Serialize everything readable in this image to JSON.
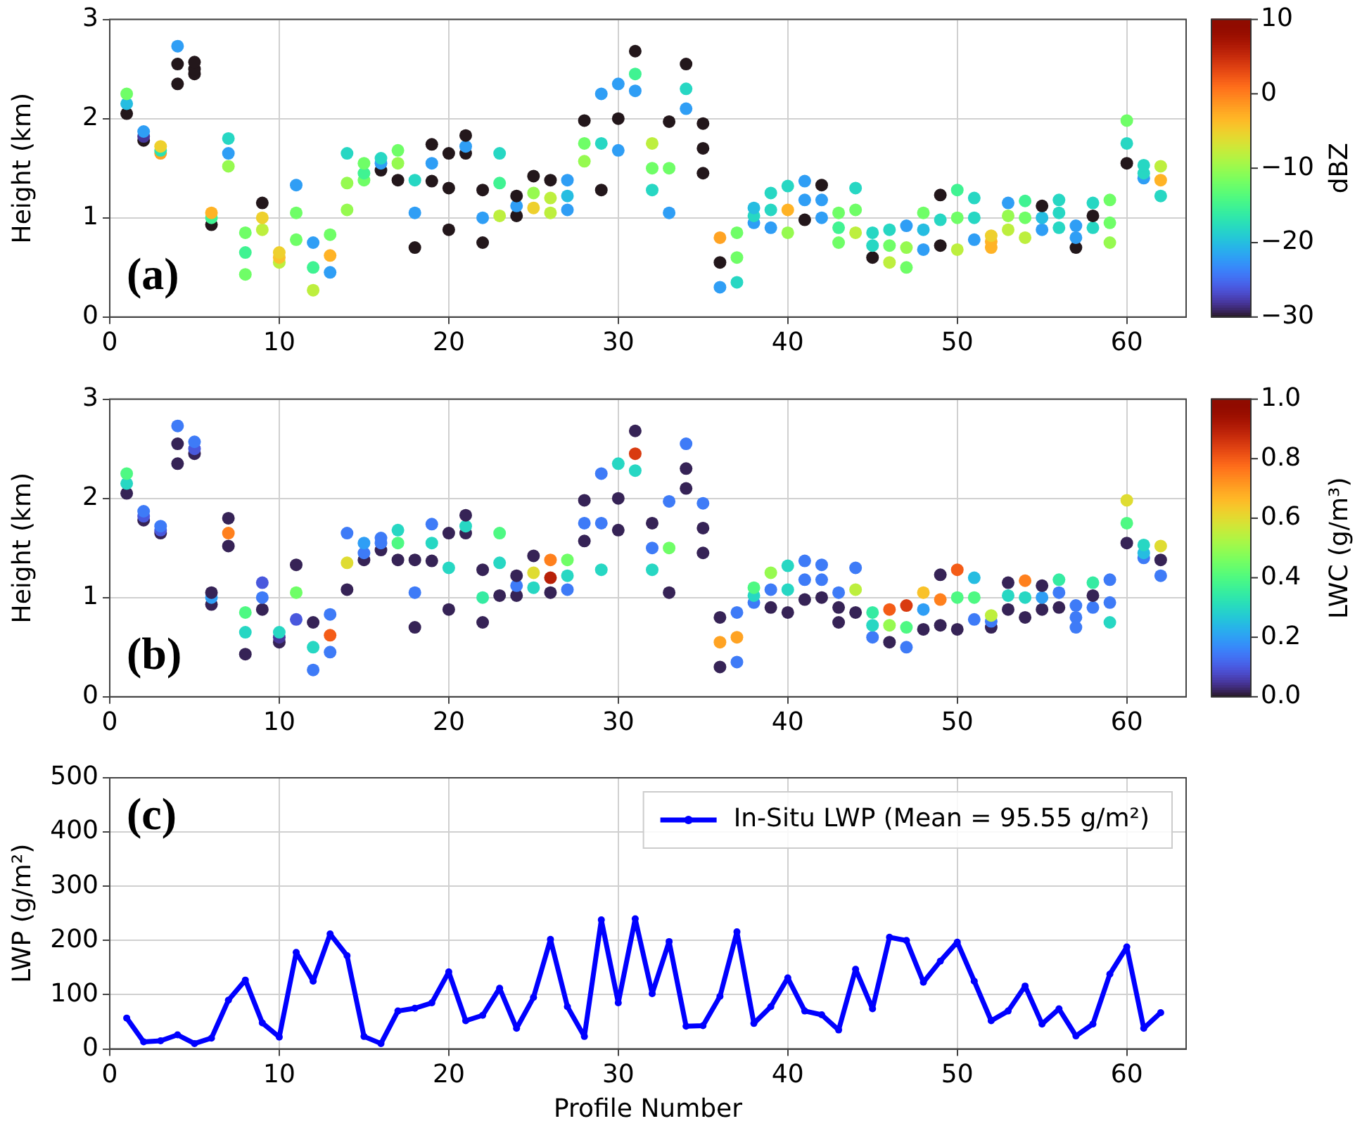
{
  "chart_data": [
    {
      "type": "scatter",
      "ylabel": "Height (km)",
      "clabel": "dBZ",
      "annotations": [
        "(a)"
      ],
      "xlim": [
        0,
        63.5
      ],
      "xticks": [
        0,
        10,
        20,
        30,
        40,
        50,
        60
      ],
      "ylim": [
        0,
        3
      ],
      "yticks": [
        0,
        1,
        2,
        3
      ],
      "clim": [
        -30,
        10
      ],
      "cticks": [
        -30,
        -20,
        -10,
        0,
        10
      ],
      "grid": true,
      "marker": "circle",
      "series": [
        {
          "x": [
            1,
            1,
            1,
            2,
            2,
            2,
            3,
            3,
            3,
            4,
            4,
            4,
            5,
            5,
            5,
            6,
            6,
            6,
            7,
            7,
            7,
            8,
            8,
            8,
            9,
            9,
            9,
            10,
            10,
            10,
            11,
            11,
            11,
            12,
            12,
            12,
            13,
            13,
            13,
            14,
            14,
            14,
            15,
            15,
            15,
            16,
            16,
            16,
            17,
            17,
            17,
            18,
            18,
            18,
            19,
            19,
            19,
            20,
            20,
            20,
            21,
            21,
            21,
            22,
            22,
            22,
            23,
            23,
            23,
            24,
            24,
            24,
            25,
            25,
            25,
            26,
            26,
            26,
            27,
            27,
            27,
            28,
            28,
            28,
            29,
            29,
            29,
            30,
            30,
            30,
            31,
            31,
            31,
            32,
            32,
            32,
            33,
            33,
            33,
            34,
            34,
            34,
            35,
            35,
            35,
            36,
            36,
            36,
            37,
            37,
            37,
            38,
            38,
            38,
            39,
            39,
            39,
            40,
            40,
            40,
            41,
            41,
            41,
            42,
            42,
            42,
            43,
            43,
            43,
            44,
            44,
            44,
            45,
            45,
            45,
            46,
            46,
            46,
            47,
            47,
            47,
            48,
            48,
            48,
            49,
            49,
            49,
            50,
            50,
            50,
            51,
            51,
            51,
            52,
            52,
            52,
            53,
            53,
            53,
            54,
            54,
            54,
            55,
            55,
            55,
            56,
            56,
            56,
            57,
            57,
            57,
            58,
            58,
            58,
            59,
            59,
            59,
            60,
            60,
            60,
            61,
            61,
            61,
            62,
            62,
            62
          ],
          "values": [
            2.05,
            2.15,
            2.25,
            1.78,
            1.82,
            1.87,
            1.65,
            1.68,
            1.72,
            2.35,
            2.55,
            2.73,
            2.45,
            2.5,
            2.57,
            0.93,
            1.0,
            1.05,
            1.52,
            1.65,
            1.8,
            0.43,
            0.65,
            0.85,
            0.88,
            1.0,
            1.15,
            0.55,
            0.6,
            0.65,
            0.78,
            1.05,
            1.33,
            0.27,
            0.5,
            0.75,
            0.45,
            0.62,
            0.83,
            1.08,
            1.35,
            1.65,
            1.38,
            1.45,
            1.55,
            1.48,
            1.55,
            1.6,
            1.38,
            1.55,
            1.68,
            0.7,
            1.05,
            1.38,
            1.37,
            1.55,
            1.74,
            0.88,
            1.3,
            1.65,
            1.65,
            1.72,
            1.83,
            0.75,
            1.0,
            1.28,
            1.02,
            1.35,
            1.65,
            1.02,
            1.12,
            1.22,
            1.1,
            1.25,
            1.42,
            1.05,
            1.2,
            1.38,
            1.08,
            1.22,
            1.38,
            1.57,
            1.75,
            1.98,
            1.28,
            1.75,
            2.25,
            1.68,
            2.0,
            2.35,
            2.28,
            2.45,
            2.68,
            1.28,
            1.5,
            1.75,
            1.05,
            1.5,
            1.97,
            2.1,
            2.3,
            2.55,
            1.45,
            1.7,
            1.95,
            0.3,
            0.55,
            0.8,
            0.35,
            0.6,
            0.85,
            0.95,
            1.02,
            1.1,
            0.9,
            1.08,
            1.25,
            0.85,
            1.08,
            1.32,
            0.98,
            1.18,
            1.37,
            1.0,
            1.18,
            1.33,
            0.75,
            0.9,
            1.05,
            0.85,
            1.08,
            1.3,
            0.6,
            0.72,
            0.85,
            0.55,
            0.72,
            0.88,
            0.5,
            0.7,
            0.92,
            0.68,
            0.88,
            1.05,
            0.72,
            0.98,
            1.23,
            0.68,
            1.0,
            1.28,
            0.78,
            1.0,
            1.2,
            0.7,
            0.76,
            0.82,
            0.88,
            1.02,
            1.15,
            0.8,
            1.0,
            1.17,
            0.88,
            1.0,
            1.12,
            0.9,
            1.05,
            1.18,
            0.7,
            0.8,
            0.92,
            0.9,
            1.02,
            1.15,
            0.75,
            0.95,
            1.18,
            1.55,
            1.75,
            1.98,
            1.4,
            1.45,
            1.53,
            1.22,
            1.38,
            1.52
          ],
          "cvalues": [
            -30,
            -20,
            -12,
            -30,
            -28,
            -22,
            -2,
            -17,
            -5,
            -30,
            -30,
            -22,
            -30,
            -30,
            -30,
            -30,
            -15,
            -3,
            -10,
            -22,
            -18,
            -12,
            -15,
            -12,
            -8,
            -5,
            -30,
            -8,
            -4,
            -5,
            -12,
            -12,
            -22,
            -8,
            -15,
            -22,
            -22,
            -3,
            -12,
            -10,
            -10,
            -18,
            -12,
            -15,
            -12,
            -30,
            -22,
            -18,
            -30,
            -10,
            -12,
            -30,
            -22,
            -18,
            -30,
            -22,
            -30,
            -30,
            -30,
            -30,
            -30,
            -22,
            -30,
            -30,
            -22,
            -30,
            -8,
            -15,
            -18,
            -30,
            -22,
            -30,
            -5,
            -10,
            -30,
            -8,
            -8,
            -30,
            -22,
            -20,
            -22,
            -10,
            -12,
            -30,
            -30,
            -18,
            -22,
            -22,
            -30,
            -22,
            -22,
            -15,
            -30,
            -18,
            -12,
            -8,
            -22,
            -12,
            -30,
            -22,
            -18,
            -30,
            -30,
            -30,
            -30,
            -22,
            -30,
            -2,
            -18,
            -12,
            -12,
            -22,
            -18,
            -20,
            -22,
            -18,
            -18,
            -10,
            -3,
            -18,
            -30,
            -22,
            -22,
            -22,
            -22,
            -30,
            -12,
            -15,
            -12,
            -8,
            -12,
            -18,
            -30,
            -18,
            -18,
            -8,
            -12,
            -18,
            -12,
            -10,
            -22,
            -22,
            -20,
            -12,
            -30,
            -18,
            -30,
            -8,
            -12,
            -15,
            -22,
            -18,
            -18,
            -3,
            -3,
            -5,
            -8,
            -10,
            -22,
            -8,
            -12,
            -15,
            -22,
            -20,
            -30,
            -18,
            -18,
            -18,
            -30,
            -22,
            -22,
            -18,
            -30,
            -18,
            -10,
            -12,
            -12,
            -30,
            -18,
            -12,
            -22,
            -18,
            -18,
            -18,
            -3,
            -8
          ]
        }
      ]
    },
    {
      "type": "scatter",
      "ylabel": "Height (km)",
      "clabel": "LWC (g/m³)",
      "annotations": [
        "(b)"
      ],
      "xlim": [
        0,
        63.5
      ],
      "xticks": [
        0,
        10,
        20,
        30,
        40,
        50,
        60
      ],
      "ylim": [
        0,
        3
      ],
      "yticks": [
        0,
        1,
        2,
        3
      ],
      "clim": [
        0,
        1
      ],
      "cticks": [
        {
          "value": 0,
          "label": "0.0"
        },
        0.2,
        0.4,
        0.6,
        0.8,
        {
          "value": 1,
          "label": "1.0"
        }
      ],
      "grid": true,
      "marker": "circle",
      "series": [
        {
          "x": [
            1,
            1,
            1,
            2,
            2,
            2,
            3,
            3,
            3,
            4,
            4,
            4,
            5,
            5,
            5,
            6,
            6,
            6,
            7,
            7,
            7,
            8,
            8,
            8,
            9,
            9,
            9,
            10,
            10,
            10,
            11,
            11,
            11,
            12,
            12,
            12,
            13,
            13,
            13,
            14,
            14,
            14,
            15,
            15,
            15,
            16,
            16,
            16,
            17,
            17,
            17,
            18,
            18,
            18,
            19,
            19,
            19,
            20,
            20,
            20,
            21,
            21,
            21,
            22,
            22,
            22,
            23,
            23,
            23,
            24,
            24,
            24,
            25,
            25,
            25,
            26,
            26,
            26,
            27,
            27,
            27,
            28,
            28,
            28,
            29,
            29,
            29,
            30,
            30,
            30,
            31,
            31,
            31,
            32,
            32,
            32,
            33,
            33,
            33,
            34,
            34,
            34,
            35,
            35,
            35,
            36,
            36,
            36,
            37,
            37,
            37,
            38,
            38,
            38,
            39,
            39,
            39,
            40,
            40,
            40,
            41,
            41,
            41,
            42,
            42,
            42,
            43,
            43,
            43,
            44,
            44,
            44,
            45,
            45,
            45,
            46,
            46,
            46,
            47,
            47,
            47,
            48,
            48,
            48,
            49,
            49,
            49,
            50,
            50,
            50,
            51,
            51,
            51,
            52,
            52,
            52,
            53,
            53,
            53,
            54,
            54,
            54,
            55,
            55,
            55,
            56,
            56,
            56,
            57,
            57,
            57,
            58,
            58,
            58,
            59,
            59,
            59,
            60,
            60,
            60,
            61,
            61,
            61,
            62,
            62,
            62
          ],
          "values": [
            2.05,
            2.15,
            2.25,
            1.78,
            1.82,
            1.87,
            1.65,
            1.68,
            1.72,
            2.35,
            2.55,
            2.73,
            2.45,
            2.5,
            2.57,
            0.93,
            1.0,
            1.05,
            1.52,
            1.65,
            1.8,
            0.43,
            0.65,
            0.85,
            0.88,
            1.0,
            1.15,
            0.55,
            0.6,
            0.65,
            0.78,
            1.05,
            1.33,
            0.27,
            0.5,
            0.75,
            0.45,
            0.62,
            0.83,
            1.08,
            1.35,
            1.65,
            1.38,
            1.45,
            1.55,
            1.48,
            1.55,
            1.6,
            1.38,
            1.55,
            1.68,
            0.7,
            1.05,
            1.38,
            1.37,
            1.55,
            1.74,
            0.88,
            1.3,
            1.65,
            1.65,
            1.72,
            1.83,
            0.75,
            1.0,
            1.28,
            1.02,
            1.35,
            1.65,
            1.02,
            1.12,
            1.22,
            1.1,
            1.25,
            1.42,
            1.05,
            1.2,
            1.38,
            1.08,
            1.22,
            1.38,
            1.57,
            1.75,
            1.98,
            1.28,
            1.75,
            2.25,
            1.68,
            2.0,
            2.35,
            2.28,
            2.45,
            2.68,
            1.28,
            1.5,
            1.75,
            1.05,
            1.5,
            1.97,
            2.1,
            2.3,
            2.55,
            1.45,
            1.7,
            1.95,
            0.3,
            0.55,
            0.8,
            0.35,
            0.6,
            0.85,
            0.95,
            1.02,
            1.1,
            0.9,
            1.08,
            1.25,
            0.85,
            1.08,
            1.32,
            0.98,
            1.18,
            1.37,
            1.0,
            1.18,
            1.33,
            0.75,
            0.9,
            1.05,
            0.85,
            1.08,
            1.3,
            0.6,
            0.72,
            0.85,
            0.55,
            0.72,
            0.88,
            0.5,
            0.7,
            0.92,
            0.68,
            0.88,
            1.05,
            0.72,
            0.98,
            1.23,
            0.68,
            1.0,
            1.28,
            0.78,
            1.0,
            1.2,
            0.7,
            0.76,
            0.82,
            0.88,
            1.02,
            1.15,
            0.8,
            1.0,
            1.17,
            0.88,
            1.0,
            1.12,
            0.9,
            1.05,
            1.18,
            0.7,
            0.8,
            0.92,
            0.9,
            1.02,
            1.15,
            0.75,
            0.95,
            1.18,
            1.55,
            1.75,
            1.98,
            1.4,
            1.45,
            1.53,
            1.22,
            1.38,
            1.52
          ],
          "cvalues": [
            0.02,
            0.3,
            0.4,
            0.02,
            0.1,
            0.15,
            0.02,
            0.1,
            0.15,
            0.02,
            0.02,
            0.15,
            0.02,
            0.1,
            0.15,
            0.02,
            0.2,
            0.02,
            0.02,
            0.75,
            0.02,
            0.02,
            0.3,
            0.4,
            0.02,
            0.15,
            0.1,
            0.02,
            0.05,
            0.3,
            0.1,
            0.45,
            0.02,
            0.15,
            0.3,
            0.02,
            0.15,
            0.8,
            0.15,
            0.02,
            0.6,
            0.15,
            0.02,
            0.15,
            0.2,
            0.02,
            0.15,
            0.15,
            0.02,
            0.4,
            0.3,
            0.02,
            0.15,
            0.02,
            0.02,
            0.3,
            0.15,
            0.02,
            0.3,
            0.02,
            0.02,
            0.3,
            0.02,
            0.02,
            0.35,
            0.02,
            0.02,
            0.3,
            0.4,
            0.02,
            0.15,
            0.02,
            0.3,
            0.6,
            0.02,
            0.02,
            0.9,
            0.75,
            0.15,
            0.3,
            0.45,
            0.02,
            0.15,
            0.02,
            0.3,
            0.15,
            0.15,
            0.02,
            0.02,
            0.3,
            0.3,
            0.85,
            0.02,
            0.3,
            0.15,
            0.02,
            0.02,
            0.45,
            0.15,
            0.02,
            0.02,
            0.15,
            0.02,
            0.02,
            0.15,
            0.02,
            0.7,
            0.02,
            0.15,
            0.7,
            0.15,
            0.15,
            0.3,
            0.4,
            0.02,
            0.15,
            0.5,
            0.02,
            0.3,
            0.3,
            0.02,
            0.15,
            0.15,
            0.02,
            0.15,
            0.15,
            0.02,
            0.02,
            0.15,
            0.02,
            0.55,
            0.15,
            0.15,
            0.3,
            0.35,
            0.02,
            0.5,
            0.8,
            0.15,
            0.4,
            0.85,
            0.02,
            0.2,
            0.65,
            0.02,
            0.75,
            0.02,
            0.02,
            0.4,
            0.8,
            0.15,
            0.4,
            0.25,
            0.02,
            0.15,
            0.55,
            0.02,
            0.3,
            0.02,
            0.02,
            0.3,
            0.75,
            0.02,
            0.2,
            0.02,
            0.02,
            0.15,
            0.35,
            0.15,
            0.15,
            0.15,
            0.15,
            0.02,
            0.35,
            0.3,
            0.15,
            0.15,
            0.02,
            0.4,
            0.6,
            0.15,
            0.25,
            0.3,
            0.15,
            0.02,
            0.6
          ]
        }
      ]
    },
    {
      "type": "line",
      "xlabel": "Profile Number",
      "ylabel": "LWP (g/m²)",
      "annotations": [
        "(c)"
      ],
      "xlim": [
        0,
        63.5
      ],
      "xticks": [
        0,
        10,
        20,
        30,
        40,
        50,
        60
      ],
      "ylim": [
        0,
        500
      ],
      "yticks": [
        0,
        100,
        200,
        300,
        400,
        500
      ],
      "grid": true,
      "legend": "top right",
      "marker": "circle",
      "line_style": "solid",
      "x": [
        1,
        2,
        3,
        4,
        5,
        6,
        7,
        8,
        9,
        10,
        11,
        12,
        13,
        14,
        15,
        16,
        17,
        18,
        19,
        20,
        21,
        22,
        23,
        24,
        25,
        26,
        27,
        28,
        29,
        30,
        31,
        32,
        33,
        34,
        35,
        36,
        37,
        38,
        39,
        40,
        41,
        42,
        43,
        44,
        45,
        46,
        47,
        48,
        49,
        50,
        51,
        52,
        53,
        54,
        55,
        56,
        57,
        58,
        59,
        60,
        61,
        62
      ],
      "series": [
        {
          "name": "In-Situ LWP (Mean = 95.55 g/m²)",
          "color": "#0000ff",
          "values": [
            57,
            13,
            15,
            26,
            10,
            20,
            90,
            127,
            48,
            22,
            178,
            125,
            212,
            172,
            23,
            10,
            70,
            75,
            85,
            142,
            52,
            62,
            112,
            38,
            95,
            202,
            78,
            23,
            238,
            85,
            240,
            102,
            198,
            42,
            43,
            97,
            216,
            47,
            78,
            131,
            70,
            63,
            35,
            147,
            74,
            206,
            200,
            123,
            162,
            197,
            125,
            52,
            70,
            116,
            46,
            74,
            24,
            46,
            138,
            188,
            38,
            67
          ]
        }
      ]
    }
  ]
}
